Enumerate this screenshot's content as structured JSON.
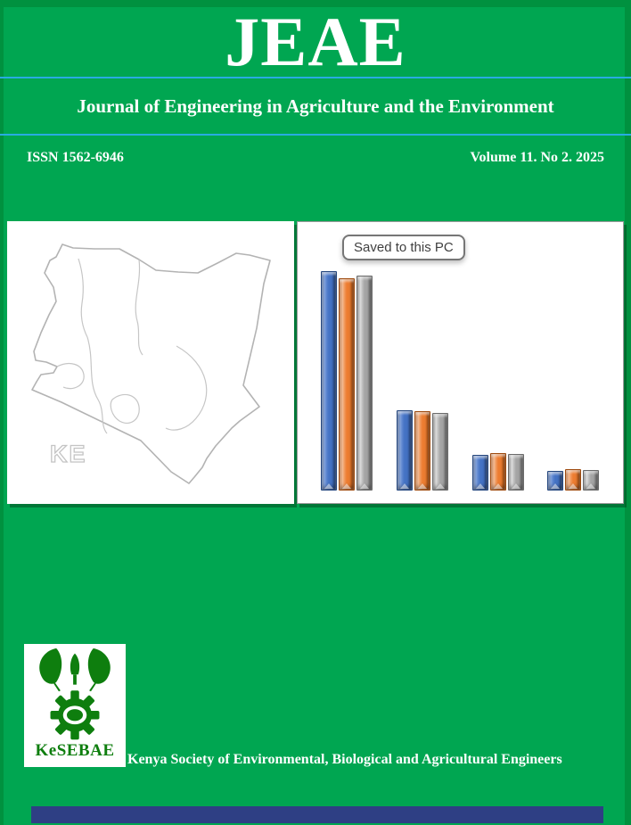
{
  "header": {
    "journal_abbr": "JEAE",
    "journal_title": "Journal of Engineering in Agriculture and the Environment",
    "issn": "ISSN 1562-6946",
    "volume": "Volume 11. No 2. 2025"
  },
  "map_panel": {
    "country_label": "KE"
  },
  "chart_panel": {
    "tooltip": "Saved to this PC"
  },
  "chart_data": {
    "type": "bar",
    "title": "",
    "xlabel": "",
    "ylabel": "",
    "x_axis_labels": "none",
    "axes_visible": false,
    "grid": false,
    "legend": "none",
    "bar_style": "3d-bevel",
    "group_count": 4,
    "values_unit": "percent-of-tallest-bar",
    "series": [
      {
        "name": "series-blue",
        "color": "#4472C4",
        "values": [
          100,
          36,
          15.5,
          8
        ]
      },
      {
        "name": "series-orange",
        "color": "#ED7D31",
        "values": [
          96.7,
          35.6,
          16.4,
          9
        ]
      },
      {
        "name": "series-gray",
        "color": "#A5A5A5",
        "values": [
          98,
          34.8,
          16,
          8.6
        ]
      }
    ]
  },
  "footer": {
    "logo_acronym": "KeSEBAE",
    "society_name": "Kenya Society of Environmental, Biological and Agricultural Engineers"
  },
  "colors": {
    "background_green": "#00A651",
    "frame_green_dark": "#00913F",
    "divider_cyan": "#29ABE2",
    "bottom_bar_navy": "#2E3F84",
    "logo_green": "#0E7E0E",
    "map_outline_gray": "#B9B9B9",
    "tooltip_border_gray": "#767676"
  }
}
